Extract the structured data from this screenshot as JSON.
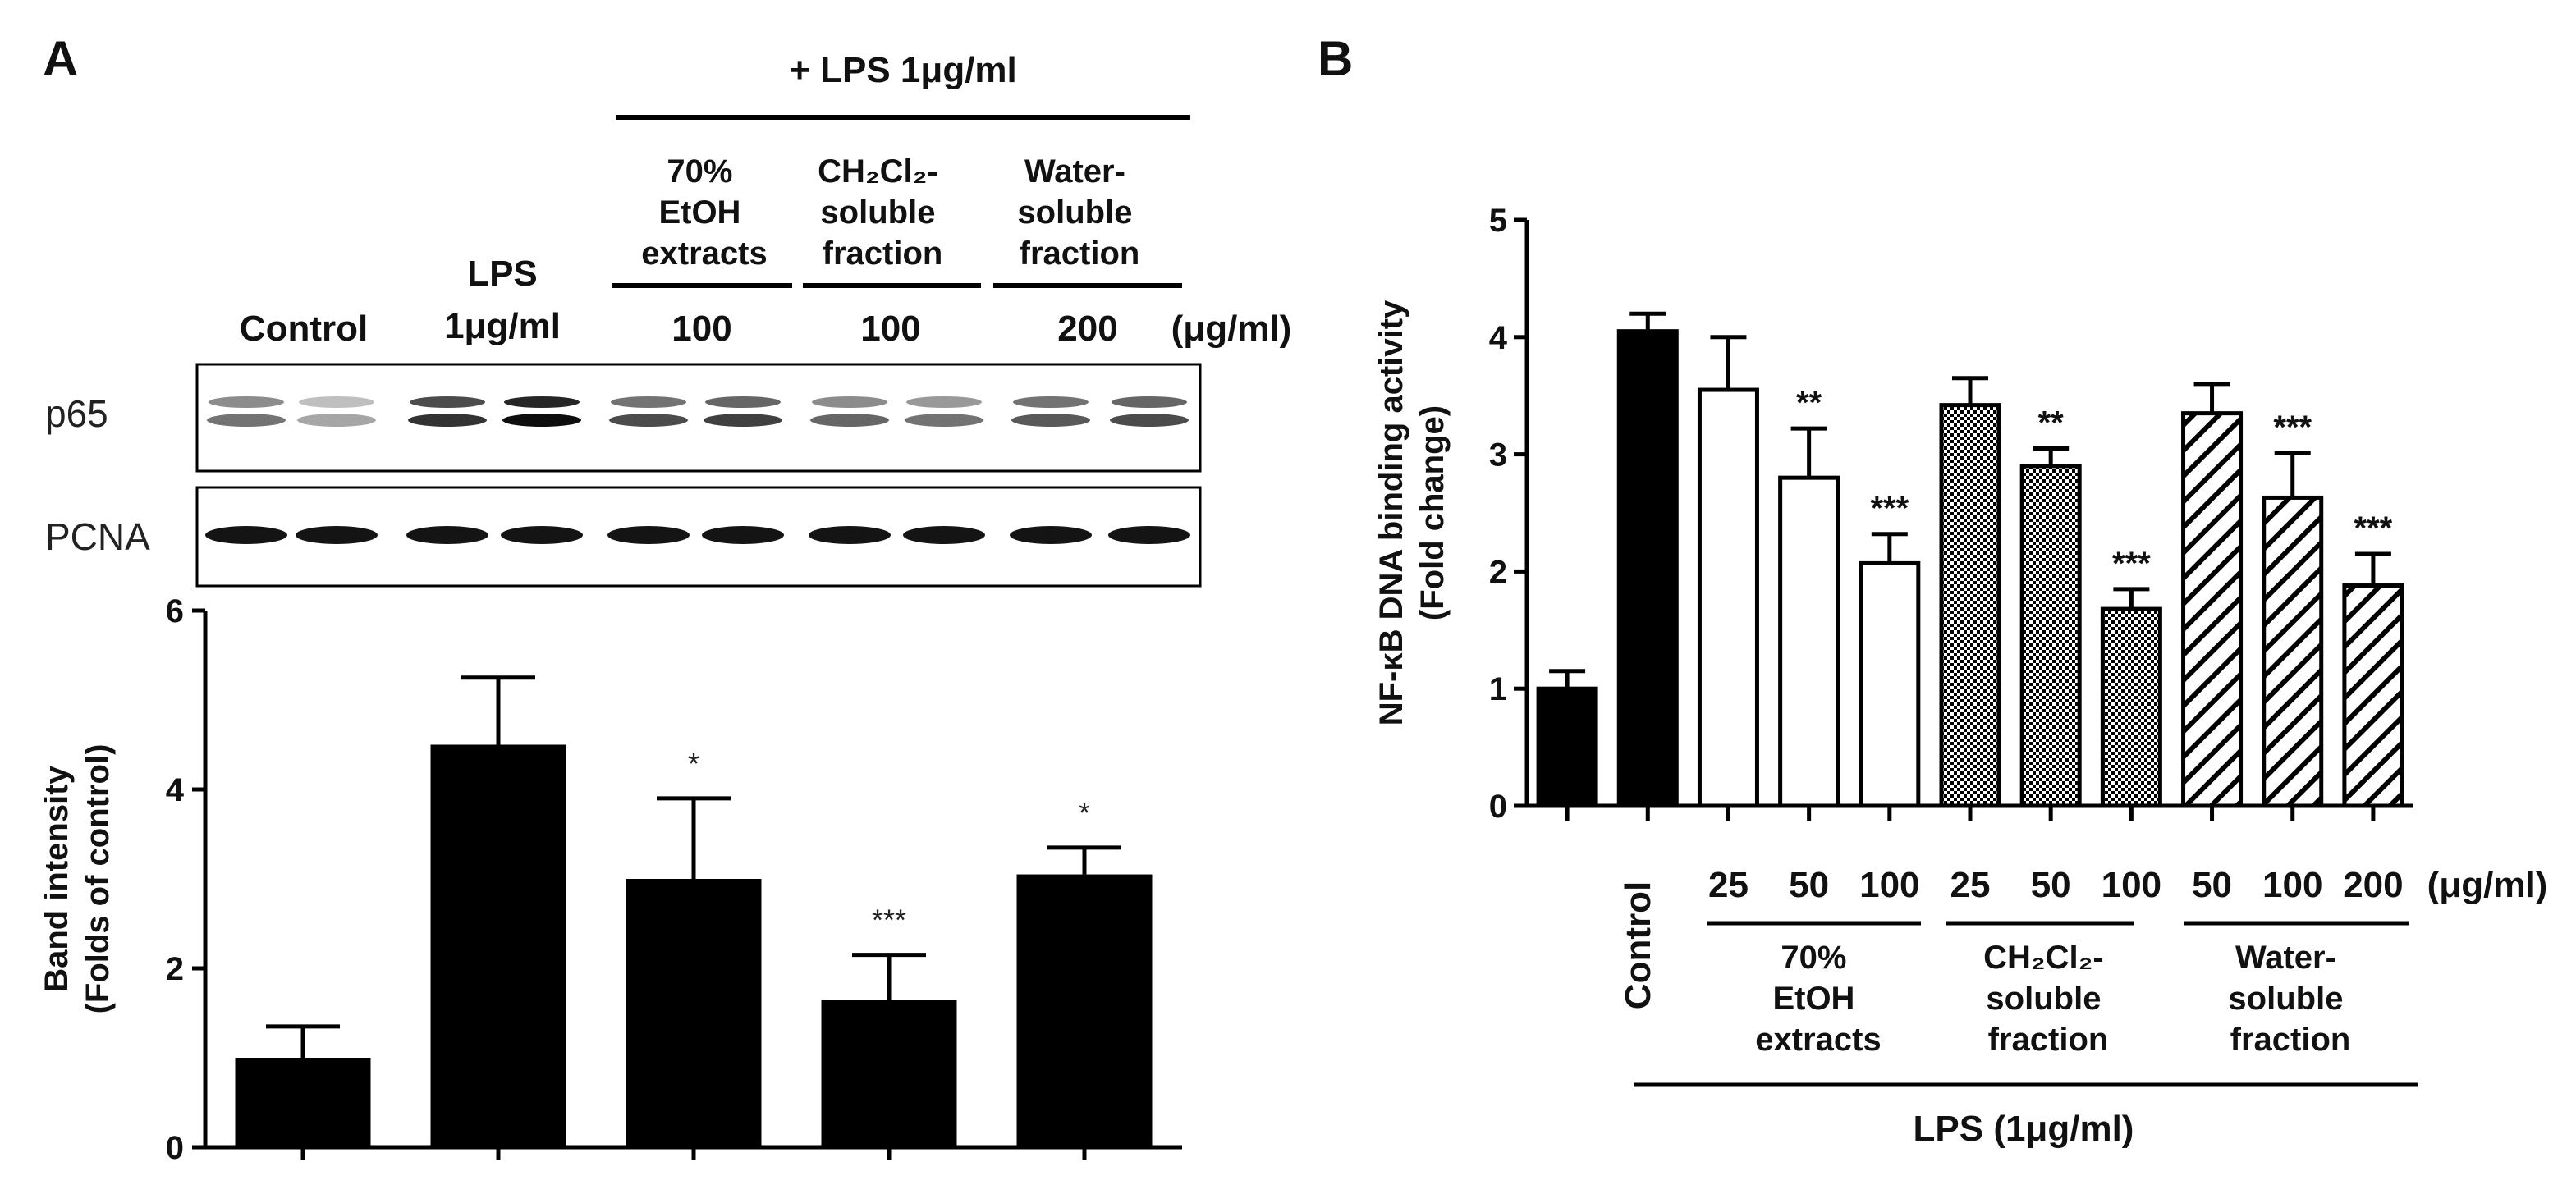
{
  "panels": {
    "a_label": "A",
    "b_label": "B"
  },
  "panel_a": {
    "treatment_header": "+ LPS 1μg/ml",
    "group_header_1": [
      "70%",
      "EtOH",
      "extracts"
    ],
    "group_header_2": [
      "CH₂Cl₂-",
      "soluble",
      "fraction"
    ],
    "group_header_3": [
      "Water-",
      "soluble",
      "fraction"
    ],
    "lane_labels": {
      "control": "Control",
      "lps_1": "LPS",
      "lps_2": "1μg/ml",
      "dose_1": "100",
      "dose_2": "100",
      "dose_3": "200",
      "unit": "(μg/ml)"
    },
    "blot_labels": {
      "p65": "p65",
      "pcna": "PCNA"
    }
  },
  "panel_b": {
    "doses": [
      "25",
      "50",
      "100",
      "25",
      "50",
      "100",
      "50",
      "100",
      "200"
    ],
    "dose_unit": "(μg/ml)",
    "control_label": "Control",
    "group_1": [
      "70%",
      "EtOH",
      "extracts"
    ],
    "group_2": [
      "CH₂Cl₂-",
      "soluble",
      "fraction"
    ],
    "group_3": [
      "Water-",
      "soluble",
      "fraction"
    ],
    "lps_label": "LPS (1μg/ml)"
  },
  "chart_data": [
    {
      "panel": "A",
      "type": "bar",
      "categories": [
        "Control",
        "LPS 1μg/ml",
        "70% EtOH extracts 100",
        "CH₂Cl₂-soluble fraction 100",
        "Water-soluble fraction 200"
      ],
      "values": [
        1.0,
        4.5,
        3.0,
        1.65,
        3.05
      ],
      "errors": [
        0.35,
        0.75,
        0.9,
        0.5,
        0.3
      ],
      "significance": [
        "",
        "",
        "*",
        "***",
        "*"
      ],
      "ylabel": "Band intensity\n(Folds of control)",
      "ylim": [
        0,
        6
      ],
      "yticks": [
        "0",
        "2",
        "4",
        "6"
      ],
      "bar_color": "#000000"
    },
    {
      "panel": "B",
      "type": "bar",
      "categories": [
        "Control",
        "LPS",
        "25",
        "50",
        "100",
        "25",
        "50",
        "100",
        "50",
        "100",
        "200"
      ],
      "values": [
        1.0,
        4.05,
        3.55,
        2.8,
        2.07,
        3.42,
        2.9,
        1.68,
        3.35,
        2.63,
        1.88
      ],
      "errors": [
        0.15,
        0.15,
        0.45,
        0.42,
        0.25,
        0.23,
        0.15,
        0.17,
        0.25,
        0.38,
        0.27
      ],
      "significance": [
        "",
        "",
        "",
        "**",
        "***",
        "",
        "**",
        "***",
        "",
        "***",
        "***"
      ],
      "fills": [
        "solid",
        "solid",
        "white",
        "white",
        "white",
        "dotted",
        "dotted",
        "dotted",
        "hatched",
        "hatched",
        "hatched"
      ],
      "ylabel": "NF-κB DNA binding activity\n(Fold change)",
      "ylim": [
        0,
        5
      ],
      "yticks": [
        "0",
        "1",
        "2",
        "3",
        "4",
        "5"
      ]
    }
  ]
}
